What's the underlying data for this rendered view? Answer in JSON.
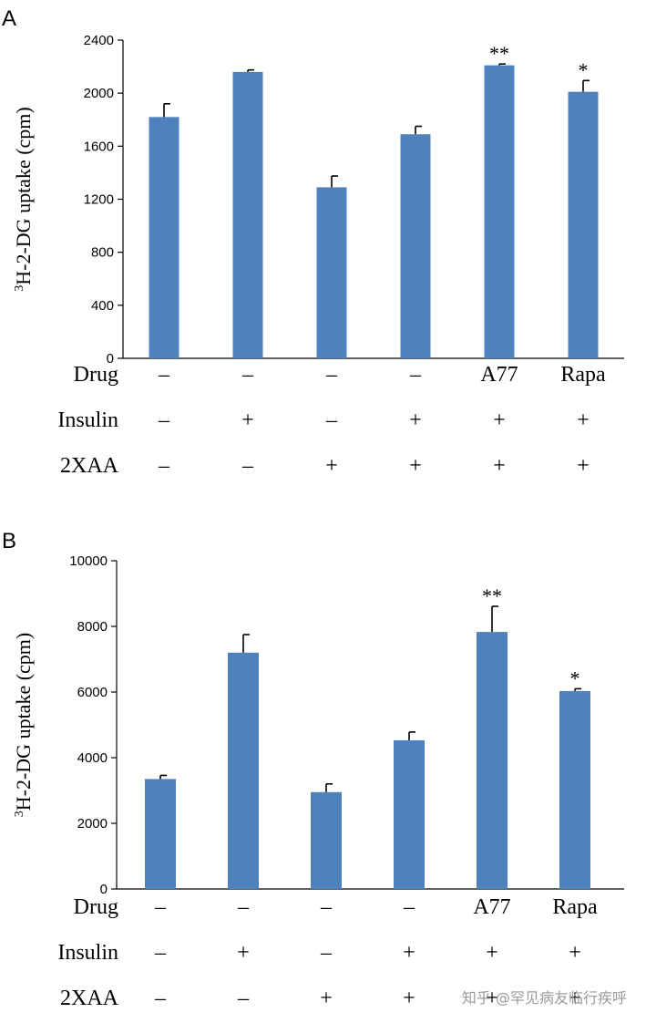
{
  "chart_data": [
    {
      "type": "bar",
      "panel": "A",
      "ylabel_sup": "3",
      "ylabel": "H-2-DG uptake (cpm)",
      "ylim": [
        0,
        2400
      ],
      "yticks": [
        "0",
        "400",
        "800",
        "1200",
        "1600",
        "2000",
        "2400"
      ],
      "grid": false,
      "bar_color": "#4f81bd",
      "values": [
        1820,
        2160,
        1290,
        1690,
        2210,
        2010
      ],
      "errors": [
        100,
        15,
        85,
        60,
        10,
        85
      ],
      "significance": [
        "",
        "",
        "",
        "",
        "**",
        "*"
      ],
      "conditions": [
        {
          "label": "Drug",
          "values": [
            "–",
            "–",
            "–",
            "–",
            "A77",
            "Rapa"
          ]
        },
        {
          "label": "Insulin",
          "values": [
            "–",
            "+",
            "–",
            "+",
            "+",
            "+"
          ]
        },
        {
          "label": "2XAA",
          "values": [
            "–",
            "–",
            "+",
            "+",
            "+",
            "+"
          ]
        }
      ]
    },
    {
      "type": "bar",
      "panel": "B",
      "ylabel_sup": "3",
      "ylabel": "H-2-DG uptake (cpm)",
      "ylim": [
        0,
        10000
      ],
      "yticks": [
        "0",
        "2000",
        "4000",
        "6000",
        "8000",
        "10000"
      ],
      "grid": false,
      "bar_color": "#4f81bd",
      "values": [
        3350,
        7200,
        2950,
        4530,
        7830,
        6030
      ],
      "errors": [
        110,
        550,
        250,
        250,
        780,
        70
      ],
      "significance": [
        "",
        "",
        "",
        "",
        "**",
        "*"
      ],
      "conditions": [
        {
          "label": "Drug",
          "values": [
            "–",
            "–",
            "–",
            "–",
            "A77",
            "Rapa"
          ]
        },
        {
          "label": "Insulin",
          "values": [
            "–",
            "+",
            "–",
            "+",
            "+",
            "+"
          ]
        },
        {
          "label": "2XAA",
          "values": [
            "–",
            "–",
            "+",
            "+",
            "+",
            "+"
          ]
        }
      ]
    }
  ],
  "watermark": "知乎 @罕见病友临行疾呼"
}
